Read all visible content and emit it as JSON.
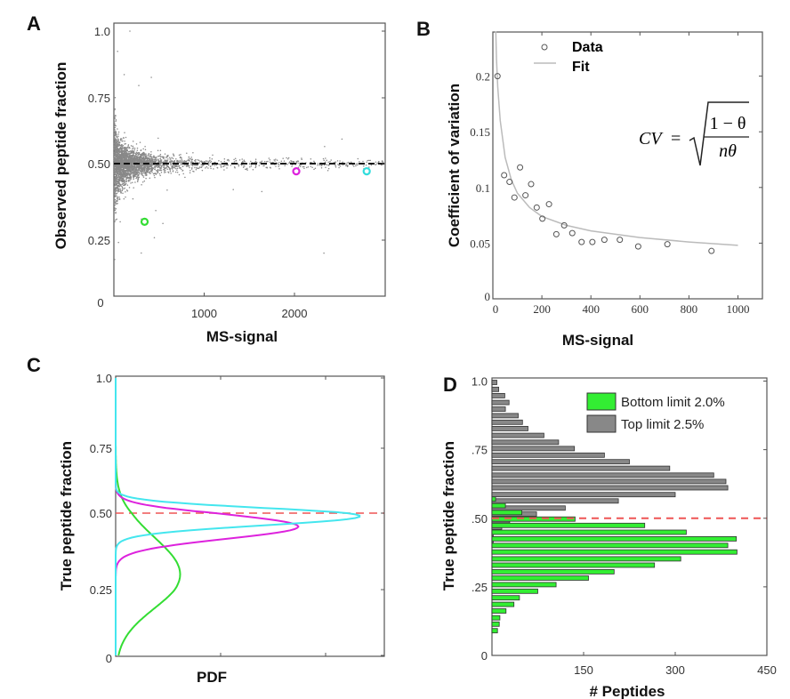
{
  "chart_data": [
    {
      "panel": "A",
      "type": "scatter",
      "xlabel": "MS-signal",
      "ylabel": "Observed peptide fraction",
      "xlim": [
        0,
        3000
      ],
      "ylim": [
        0,
        1.0
      ],
      "x_ticks": [
        "0",
        "1000",
        "2000"
      ],
      "y_ticks": [
        "0",
        "0.25",
        "0.50",
        "0.75",
        "1.0"
      ],
      "reference_line": {
        "y": 0.5,
        "style": "dashed",
        "color": "#111111"
      },
      "highlighted_points": [
        {
          "x": 340,
          "y": 0.31,
          "color": "#33dd33"
        },
        {
          "x": 2020,
          "y": 0.475,
          "color": "#dd22dd"
        },
        {
          "x": 2800,
          "y": 0.475,
          "color": "#33dddd"
        }
      ],
      "scatter_color": "#888888"
    },
    {
      "panel": "B",
      "type": "scatter",
      "xlabel": "MS-signal",
      "ylabel": "Coefficient of variation",
      "xlim": [
        0,
        1100
      ],
      "ylim": [
        0,
        0.24
      ],
      "x_ticks": [
        "0",
        "200",
        "400",
        "600",
        "800",
        "1000"
      ],
      "y_ticks": [
        "0",
        "0.05",
        "0.1",
        "0.15",
        "0.2"
      ],
      "legend": [
        "Data",
        "Fit"
      ],
      "legend_placement": "top",
      "formula": {
        "lhs": "CV",
        "eq": "=",
        "num": "1 − θ",
        "den": "nθ"
      },
      "series": [
        {
          "name": "Data",
          "x": [
            19,
            46,
            68,
            88,
            111,
            133,
            156,
            179,
            202,
            229,
            259,
            291,
            324,
            362,
            406,
            455,
            518,
            593,
            712,
            892
          ],
          "y": [
            0.2,
            0.111,
            0.105,
            0.091,
            0.118,
            0.093,
            0.103,
            0.082,
            0.072,
            0.085,
            0.058,
            0.066,
            0.059,
            0.051,
            0.051,
            0.053,
            0.053,
            0.047,
            0.049,
            0.043
          ]
        },
        {
          "name": "Fit",
          "x": [
            12,
            15,
            20,
            30,
            50,
            75,
            100,
            150,
            200,
            300,
            400,
            600,
            800,
            1000
          ],
          "y": [
            0.24,
            0.215,
            0.19,
            0.16,
            0.127,
            0.107,
            0.095,
            0.082,
            0.074,
            0.066,
            0.061,
            0.055,
            0.051,
            0.048
          ],
          "color": "#bbbbbb"
        }
      ]
    },
    {
      "panel": "C",
      "type": "line",
      "xlabel": "PDF",
      "ylabel": "True peptide fraction",
      "ylim": [
        0,
        1.0
      ],
      "y_ticks": [
        "0",
        "0.25",
        "0.50",
        "0.75",
        "1.0"
      ],
      "reference_line": {
        "y": 0.5,
        "style": "dashed",
        "color": "#ee5555"
      },
      "series": [
        {
          "color": "#33dd33",
          "mode": 0.3,
          "sd": 0.12,
          "peak_relative": 0.24
        },
        {
          "color": "#dd22dd",
          "mode": 0.456,
          "sd": 0.04,
          "peak_relative": 0.68
        },
        {
          "color": "#44e6ee",
          "mode": 0.49,
          "sd": 0.03,
          "peak_relative": 0.91
        }
      ]
    },
    {
      "panel": "D",
      "type": "bar",
      "orientation": "horizontal",
      "xlabel": "# Peptides",
      "ylabel": "True peptide fraction",
      "xlim": [
        0,
        450
      ],
      "ylim": [
        0,
        1.0
      ],
      "x_ticks": [
        "150",
        "300",
        "450"
      ],
      "y_ticks": [
        "0",
        ".25",
        ".50",
        ".75",
        "1.0"
      ],
      "reference_line": {
        "y": 0.5,
        "style": "dashed",
        "color": "#ee5555"
      },
      "legend_placement": "top-right",
      "series": [
        {
          "name": "Bottom limit 2.0%",
          "color": "#33ee33",
          "y": [
            0.57,
            0.546,
            0.521,
            0.497,
            0.474,
            0.449,
            0.425,
            0.401,
            0.377,
            0.352,
            0.329,
            0.305,
            0.282,
            0.258,
            0.234,
            0.21,
            0.186,
            0.162,
            0.137,
            0.114,
            0.09
          ],
          "values": [
            6,
            22,
            49,
            136,
            250,
            318,
            400,
            386,
            401,
            309,
            266,
            200,
            158,
            105,
            75,
            45,
            36,
            23,
            13,
            12,
            9
          ]
        },
        {
          "name": "Top limit 2.5%",
          "color": "#888888",
          "y": [
            0.995,
            0.97,
            0.947,
            0.922,
            0.898,
            0.874,
            0.85,
            0.827,
            0.802,
            0.777,
            0.754,
            0.73,
            0.706,
            0.682,
            0.657,
            0.634,
            0.611,
            0.586,
            0.563,
            0.537,
            0.515,
            0.491,
            0.467,
            0.443,
            0.419
          ],
          "values": [
            8,
            11,
            21,
            28,
            22,
            43,
            50,
            59,
            85,
            109,
            135,
            184,
            225,
            291,
            363,
            383,
            386,
            300,
            207,
            120,
            73,
            29,
            16,
            2,
            2
          ]
        }
      ]
    }
  ],
  "panel_labels": [
    "A",
    "B",
    "C",
    "D"
  ]
}
